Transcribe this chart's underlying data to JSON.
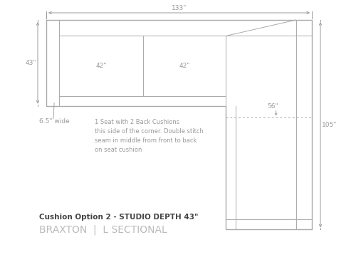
{
  "bg_color": "#ffffff",
  "line_color": "#aaaaaa",
  "dim_color": "#999999",
  "text_color": "#999999",
  "bold_text_color": "#444444",
  "subtitle_color": "#bbbbbb",
  "title_label": "Cushion Option 2 - STUDIO DEPTH 43\"",
  "subtitle_label": "BRAXTON  |  L SECTIONAL",
  "dim_133": "133\"",
  "dim_43": "43\"",
  "dim_42a": "42\"",
  "dim_42b": "42\"",
  "dim_105": "105\"",
  "dim_56": "56\"",
  "dim_65": "6.5\" wide",
  "note_text": "1 Seat with 2 Back Cushions\nthis side of the corner. Double stitch\nseam in middle from front to back\non seat cushion",
  "lw": 0.7,
  "lw_thick": 1.0
}
